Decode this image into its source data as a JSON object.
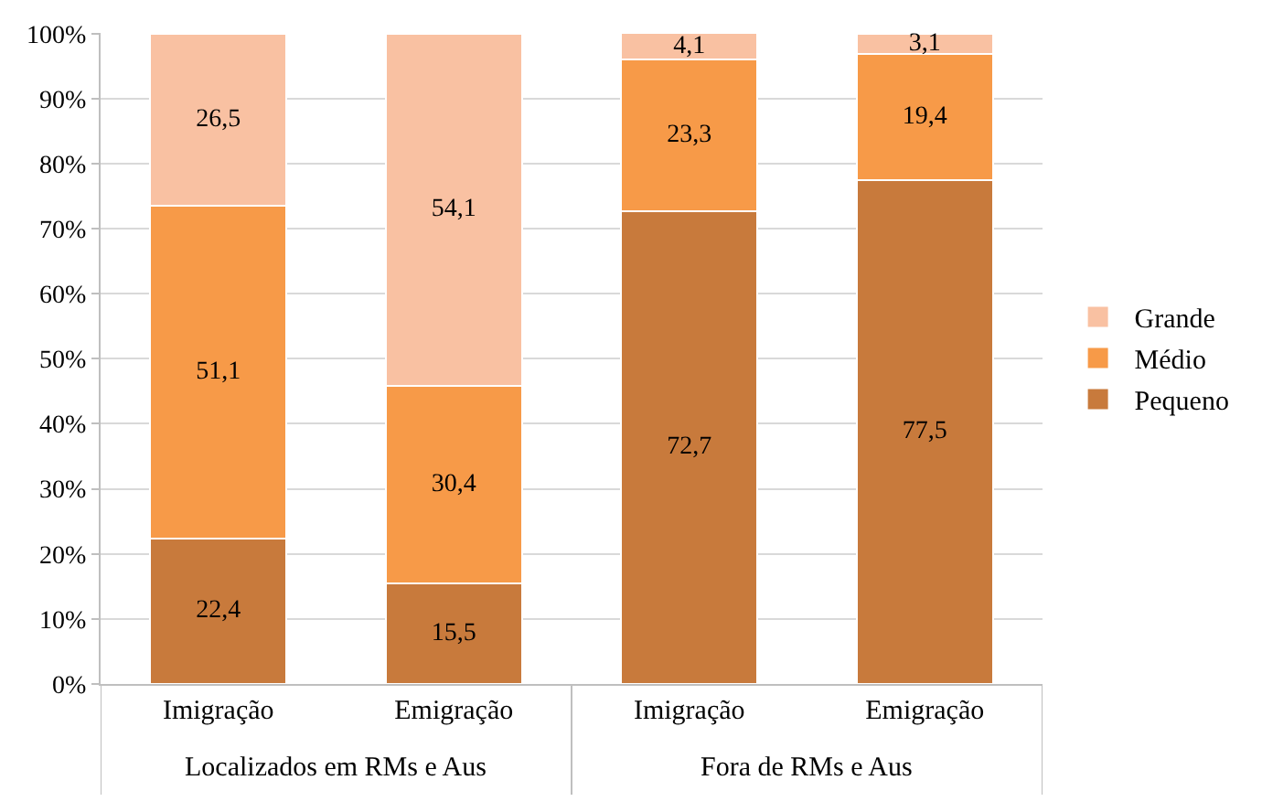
{
  "chart_data": {
    "type": "bar",
    "stacked": true,
    "categories": [
      "Imigração",
      "Emigração",
      "Imigração",
      "Emigração"
    ],
    "series": [
      {
        "name": "Pequeno",
        "color": "#c87a3c",
        "values": [
          22.4,
          15.5,
          72.7,
          77.5
        ],
        "value_labels": [
          "22,4",
          "15,5",
          "72,7",
          "77,5"
        ]
      },
      {
        "name": "Médio",
        "color": "#f79a48",
        "values": [
          51.1,
          30.4,
          23.3,
          19.4
        ],
        "value_labels": [
          "51,1",
          "30,4",
          "23,3",
          "19,4"
        ]
      },
      {
        "name": "Grande",
        "color": "#f9c1a2",
        "values": [
          26.5,
          54.1,
          4.1,
          3.1
        ],
        "value_labels": [
          "26,5",
          "54,1",
          "4,1",
          "3,1"
        ]
      }
    ],
    "ylim": [
      0,
      100.1
    ],
    "yticks": [
      {
        "value": 0,
        "label": "0%"
      },
      {
        "value": 10,
        "label": "10%"
      },
      {
        "value": 20,
        "label": "20%"
      },
      {
        "value": 30,
        "label": "30%"
      },
      {
        "value": 40,
        "label": "40%"
      },
      {
        "value": 50,
        "label": "50%"
      },
      {
        "value": 60,
        "label": "60%"
      },
      {
        "value": 70,
        "label": "70%"
      },
      {
        "value": 80,
        "label": "80%"
      },
      {
        "value": 90,
        "label": "90%"
      },
      {
        "value": 100,
        "label": "100%"
      }
    ],
    "grid": "y",
    "legend": "right",
    "annotations": [
      "Localizados em RMs e Aus",
      "Fora de RMs e Aus"
    ]
  }
}
